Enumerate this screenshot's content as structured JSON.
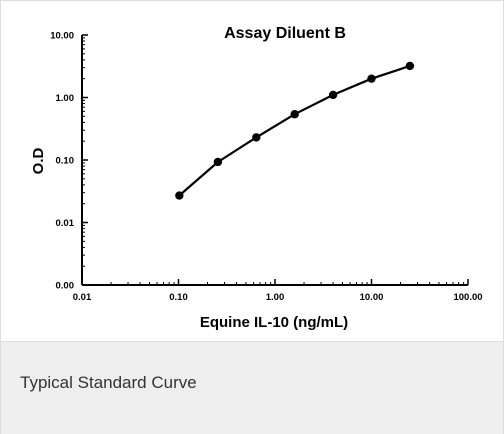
{
  "chart_data": {
    "type": "line",
    "title": "Assay Diluent B",
    "xlabel": "Equine IL-10 (ng/mL)",
    "ylabel": "O.D",
    "x_scale": "log",
    "y_scale": "log",
    "xlim": [
      0.01,
      100
    ],
    "ylim": [
      0.001,
      10
    ],
    "x_ticks": [
      {
        "value": 0.01,
        "label": "0.01"
      },
      {
        "value": 0.1,
        "label": "0.10"
      },
      {
        "value": 1,
        "label": "1.00"
      },
      {
        "value": 10,
        "label": "10.00"
      },
      {
        "value": 100,
        "label": "100.00"
      }
    ],
    "y_ticks": [
      {
        "value": 0.001,
        "label": "0.00"
      },
      {
        "value": 0.01,
        "label": "0.01"
      },
      {
        "value": 0.1,
        "label": "0.10"
      },
      {
        "value": 1,
        "label": "1.00"
      },
      {
        "value": 10,
        "label": "10.00"
      }
    ],
    "grid": false,
    "series": [
      {
        "x": [
          0.102,
          0.256,
          0.64,
          1.6,
          4.0,
          10.0,
          25.0
        ],
        "y": [
          0.027,
          0.093,
          0.23,
          0.54,
          1.1,
          2.0,
          3.2
        ],
        "color": "#000000"
      }
    ]
  },
  "caption": {
    "text": "Typical Standard Curve"
  }
}
